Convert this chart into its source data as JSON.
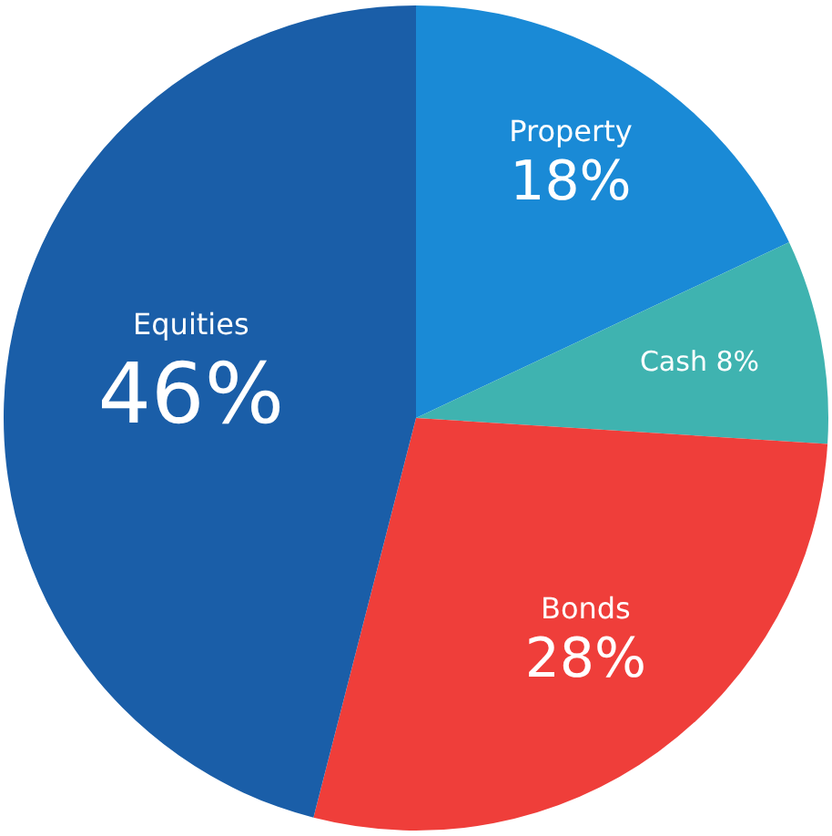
{
  "chart_data": {
    "type": "pie",
    "categories": [
      "Property",
      "Cash",
      "Bonds",
      "Equities"
    ],
    "values": [
      18,
      8,
      28,
      46
    ],
    "value_labels": [
      "18%",
      "8%",
      "28%",
      "46%"
    ],
    "colors": [
      "#1a8ad6",
      "#3fb3b0",
      "#ef3e3a",
      "#1a5ea8"
    ],
    "legend": false
  }
}
